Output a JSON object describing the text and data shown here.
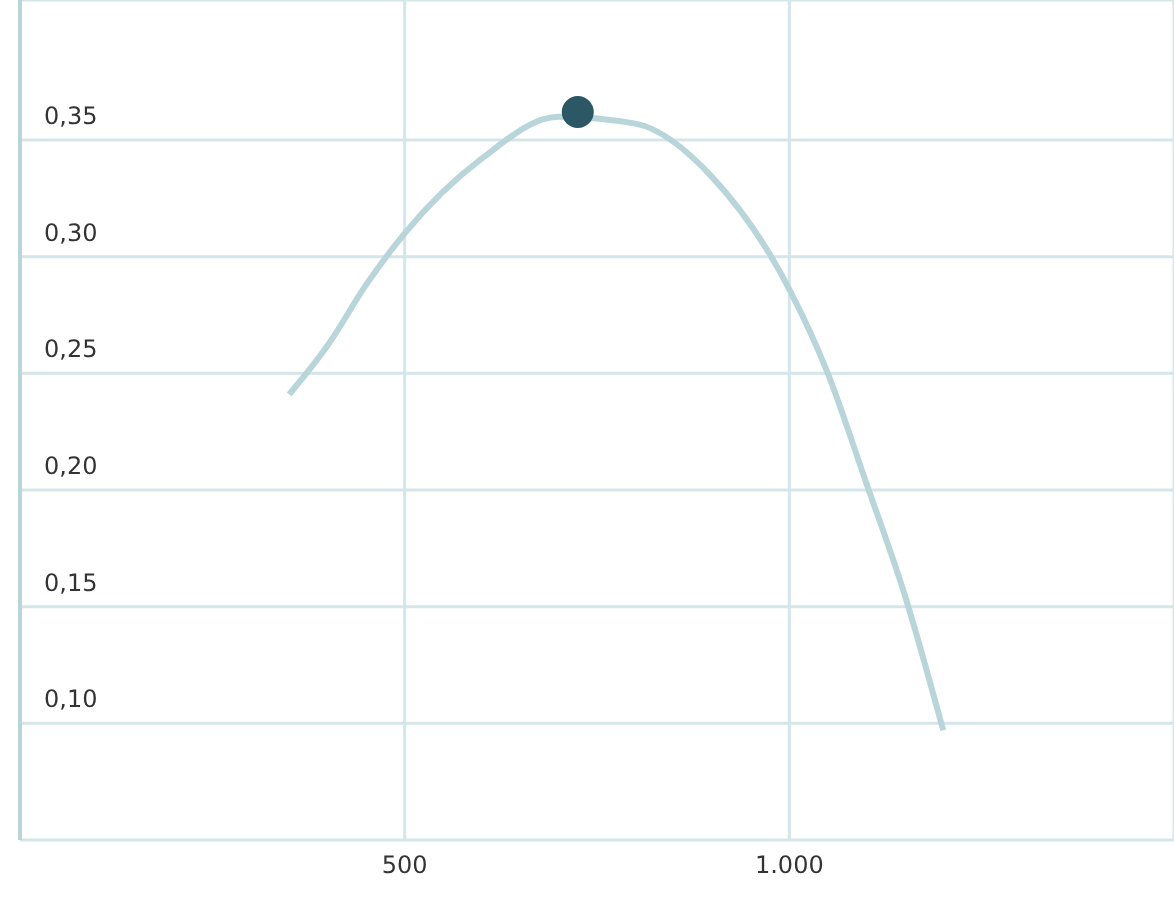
{
  "chart_data": {
    "type": "line",
    "x": [
      350,
      400,
      450,
      500,
      600,
      700,
      800,
      900,
      1000,
      1050,
      1100,
      1150,
      1200
    ],
    "series": [
      {
        "color": "#b8d5da",
        "values": [
          0.241,
          0.262,
          0.288,
          0.31,
          0.342,
          0.36,
          0.357,
          0.334,
          0.286,
          0.25,
          0.203,
          0.155,
          0.097
        ]
      },
      {
        "type": "scatter",
        "marker": "circle",
        "color": "#2c5866",
        "x": [
          725
        ],
        "values": [
          0.362
        ]
      }
    ],
    "xlim": [
      0,
      1500
    ],
    "xticks": [
      {
        "value": 500,
        "label": "500"
      },
      {
        "value": 1000,
        "label": "1.000"
      }
    ],
    "ylim": [
      0.05,
      0.41
    ],
    "yticks": [
      {
        "value": 0.1,
        "label": "0,10"
      },
      {
        "value": 0.15,
        "label": "0,15"
      },
      {
        "value": 0.2,
        "label": "0,20"
      },
      {
        "value": 0.25,
        "label": "0,25"
      },
      {
        "value": 0.3,
        "label": "0,30"
      },
      {
        "value": 0.35,
        "label": "0,35"
      }
    ],
    "grid": true,
    "line_style": "solid"
  }
}
